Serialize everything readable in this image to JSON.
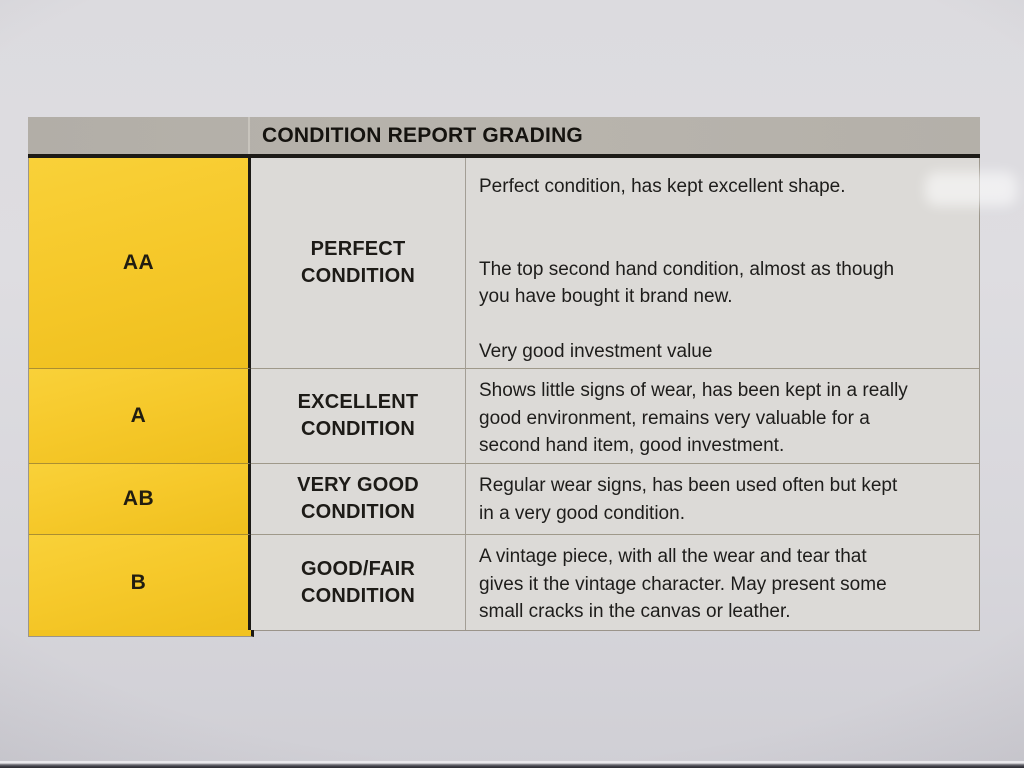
{
  "document": {
    "title": "CONDITION REPORT GRADING",
    "rows": [
      {
        "grade": "AA",
        "condition_lines": [
          "PERFECT",
          "CONDITION"
        ],
        "description_lines": [
          "Perfect condition, has kept excellent shape.",
          "",
          "",
          "The top second hand condition, almost as though",
          "you have bought it brand new.",
          "",
          "Very good investment value"
        ]
      },
      {
        "grade": "A",
        "condition_lines": [
          "EXCELLENT",
          "CONDITION"
        ],
        "description_lines": [
          "Shows little signs of wear, has been kept in a really",
          "good environment, remains very valuable for a",
          "second hand item, good investment."
        ]
      },
      {
        "grade": "AB",
        "condition_lines": [
          "VERY GOOD",
          "CONDITION"
        ],
        "description_lines": [
          "Regular wear signs, has been used often but kept",
          "in a very good condition."
        ]
      },
      {
        "grade": "B",
        "condition_lines": [
          "GOOD/FAIR",
          "CONDITION"
        ],
        "description_lines": [
          "A vintage piece, with all the wear and tear that",
          "gives it the vintage character. May present some",
          "small cracks in the canvas or leather."
        ]
      }
    ]
  },
  "colors": {
    "grade_column_yellow": "#F6C92B",
    "header_bar_gray": "#B6B2AB",
    "cell_gray": "#DCDAD7",
    "divider_black": "#1B1915",
    "text_black": "#1D1C1A"
  }
}
